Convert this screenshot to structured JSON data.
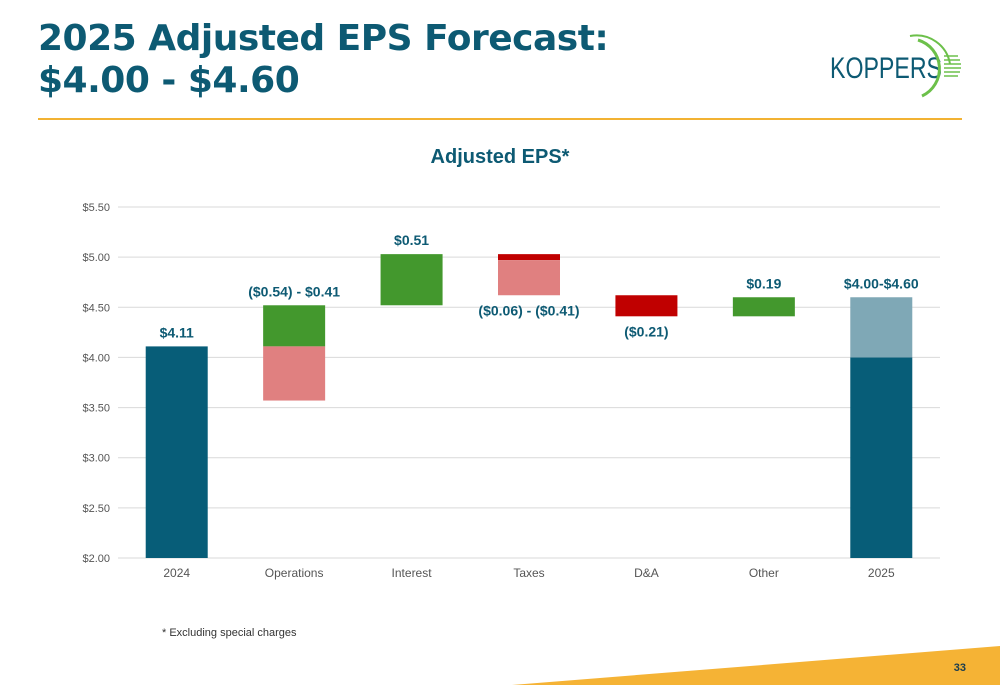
{
  "slide": {
    "title_line1": "2025 Adjusted EPS Forecast:",
    "title_line2": "$4.00 - $4.60",
    "logo_text": "KOPPERS",
    "footnote": "* Excluding special charges",
    "page_number": "33"
  },
  "colors": {
    "title": "#0d5a73",
    "base_bar": "#075d78",
    "range_light_blue": "#7fa8b6",
    "positive": "#43982d",
    "negative_dark": "#c00000",
    "negative_light": "#e08080",
    "rule": "#f2b233"
  },
  "chart_data": {
    "type": "bar",
    "subtype": "waterfall",
    "title": "Adjusted EPS*",
    "xlabel": "",
    "ylabel": "",
    "ylim": [
      2.0,
      5.5
    ],
    "yticks": [
      2.0,
      2.5,
      3.0,
      3.5,
      4.0,
      4.5,
      5.0,
      5.5
    ],
    "ytick_labels": [
      "$2.00",
      "$2.50",
      "$3.00",
      "$3.50",
      "$4.00",
      "$4.50",
      "$5.00",
      "$5.50"
    ],
    "grid": true,
    "categories": [
      "2024",
      "Operations",
      "Interest",
      "Taxes",
      "D&A",
      "Other",
      "2025"
    ],
    "data_labels": [
      "$4.11",
      "($0.54) - $0.41",
      "$0.51",
      "($0.06) - ($0.41)",
      "($0.21)",
      "$0.19",
      "$4.00-$4.60"
    ],
    "steps": [
      {
        "category": "2024",
        "kind": "total",
        "value": 4.11,
        "label_position": "above"
      },
      {
        "category": "Operations",
        "kind": "range",
        "low": -0.54,
        "high": 0.41,
        "start": 4.11,
        "label_position": "above"
      },
      {
        "category": "Interest",
        "kind": "delta",
        "value": 0.51,
        "start": 4.52,
        "label_position": "above"
      },
      {
        "category": "Taxes",
        "kind": "range",
        "low": -0.41,
        "high": -0.06,
        "start": 5.03,
        "label_position": "below"
      },
      {
        "category": "D&A",
        "kind": "delta",
        "value": -0.21,
        "start": 4.62,
        "label_position": "below"
      },
      {
        "category": "Other",
        "kind": "delta",
        "value": 0.19,
        "start": 4.41,
        "label_position": "above"
      },
      {
        "category": "2025",
        "kind": "total_range",
        "low": 4.0,
        "high": 4.6,
        "label_position": "above"
      }
    ]
  }
}
